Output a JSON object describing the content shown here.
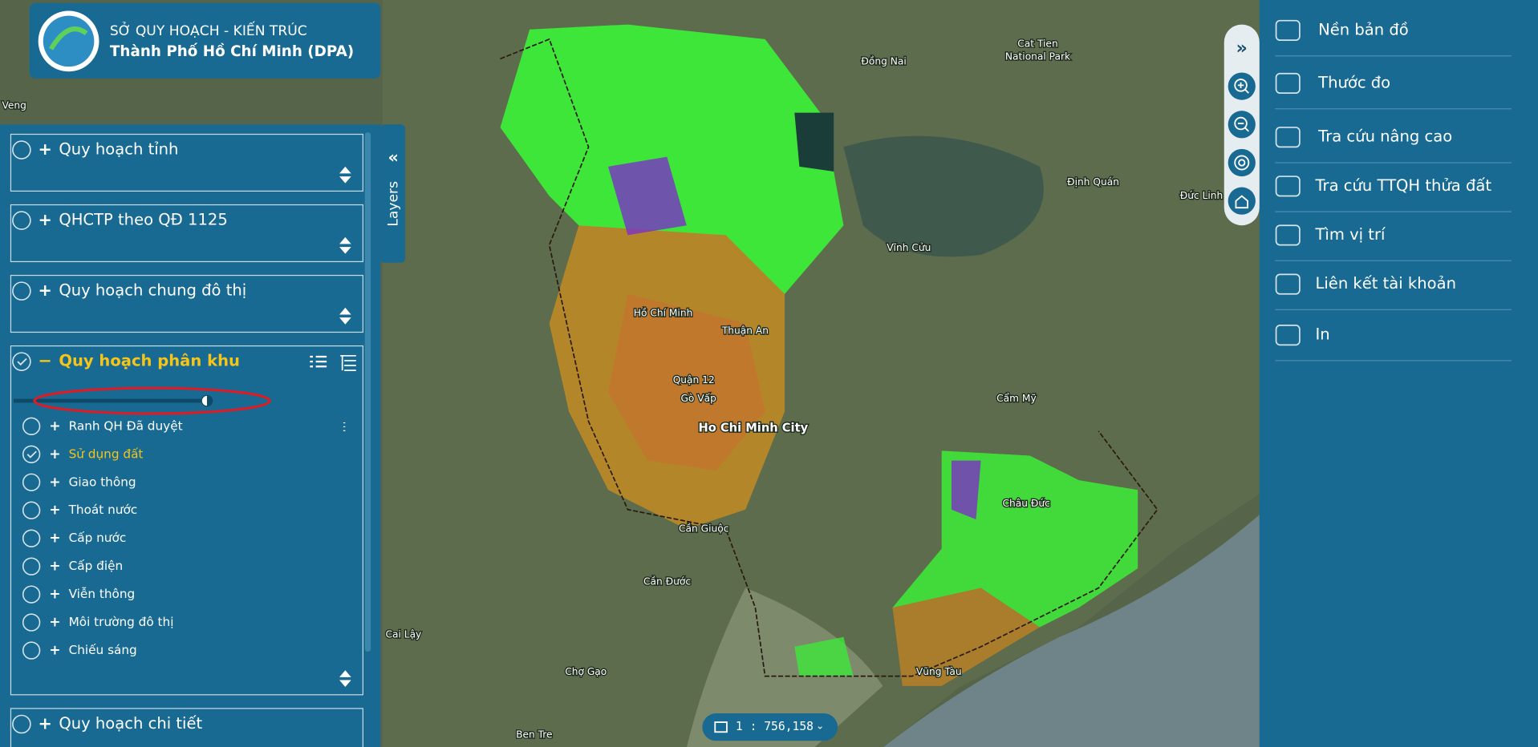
{
  "header": {
    "line1": "SỞ QUY HOẠCH - KIẾN TRÚC",
    "line2": "Thành Phố Hồ Chí Minh (DPA)"
  },
  "sidebar_tab": "Layers",
  "layer_groups": [
    {
      "label": "Quy hoạch tỉnh",
      "checked": false,
      "expanded": false
    },
    {
      "label": "QHCTP theo QĐ 1125",
      "checked": false,
      "expanded": false
    },
    {
      "label": "Quy hoạch chung đô thị",
      "checked": false,
      "expanded": false
    },
    {
      "label": "Quy hoạch phân khu",
      "checked": true,
      "expanded": true,
      "sublayers": [
        {
          "label": "Ranh QH Đã duyệt",
          "checked": false
        },
        {
          "label": "Sử dụng đất",
          "checked": true
        },
        {
          "label": "Giao thông",
          "checked": false
        },
        {
          "label": "Thoát nước",
          "checked": false
        },
        {
          "label": "Cấp nước",
          "checked": false
        },
        {
          "label": "Cấp điện",
          "checked": false
        },
        {
          "label": "Viễn thông",
          "checked": false
        },
        {
          "label": "Môi trường đô thị",
          "checked": false
        },
        {
          "label": "Chiếu sáng",
          "checked": false
        }
      ]
    },
    {
      "label": "Quy hoạch chi tiết",
      "checked": false,
      "expanded": false
    }
  ],
  "tools": [
    "Nền bản đồ",
    "Thước đo",
    "Tra cứu nâng cao",
    "Tra cứu TTQH thửa đất",
    "Tìm vị trí",
    "Liên kết tài khoản",
    "In"
  ],
  "scale": "1 : 756,158",
  "map_labels": [
    "Veng",
    "Đồng Nai",
    "Cat Tien",
    "National Park",
    "Định Quán",
    "Đức Linh",
    "Vĩnh Cửu",
    "Hồ Chí Minh",
    "Thuận An",
    "Quận 12",
    "Gò Vấp",
    "Ho Chi Minh City",
    "Cẩm Mỹ",
    "Châu Đức",
    "Cần Giuộc",
    "Cần Đước",
    "Cai Lậy",
    "Chợ Gạo",
    "Vũng Tàu",
    "Ben Tre"
  ]
}
